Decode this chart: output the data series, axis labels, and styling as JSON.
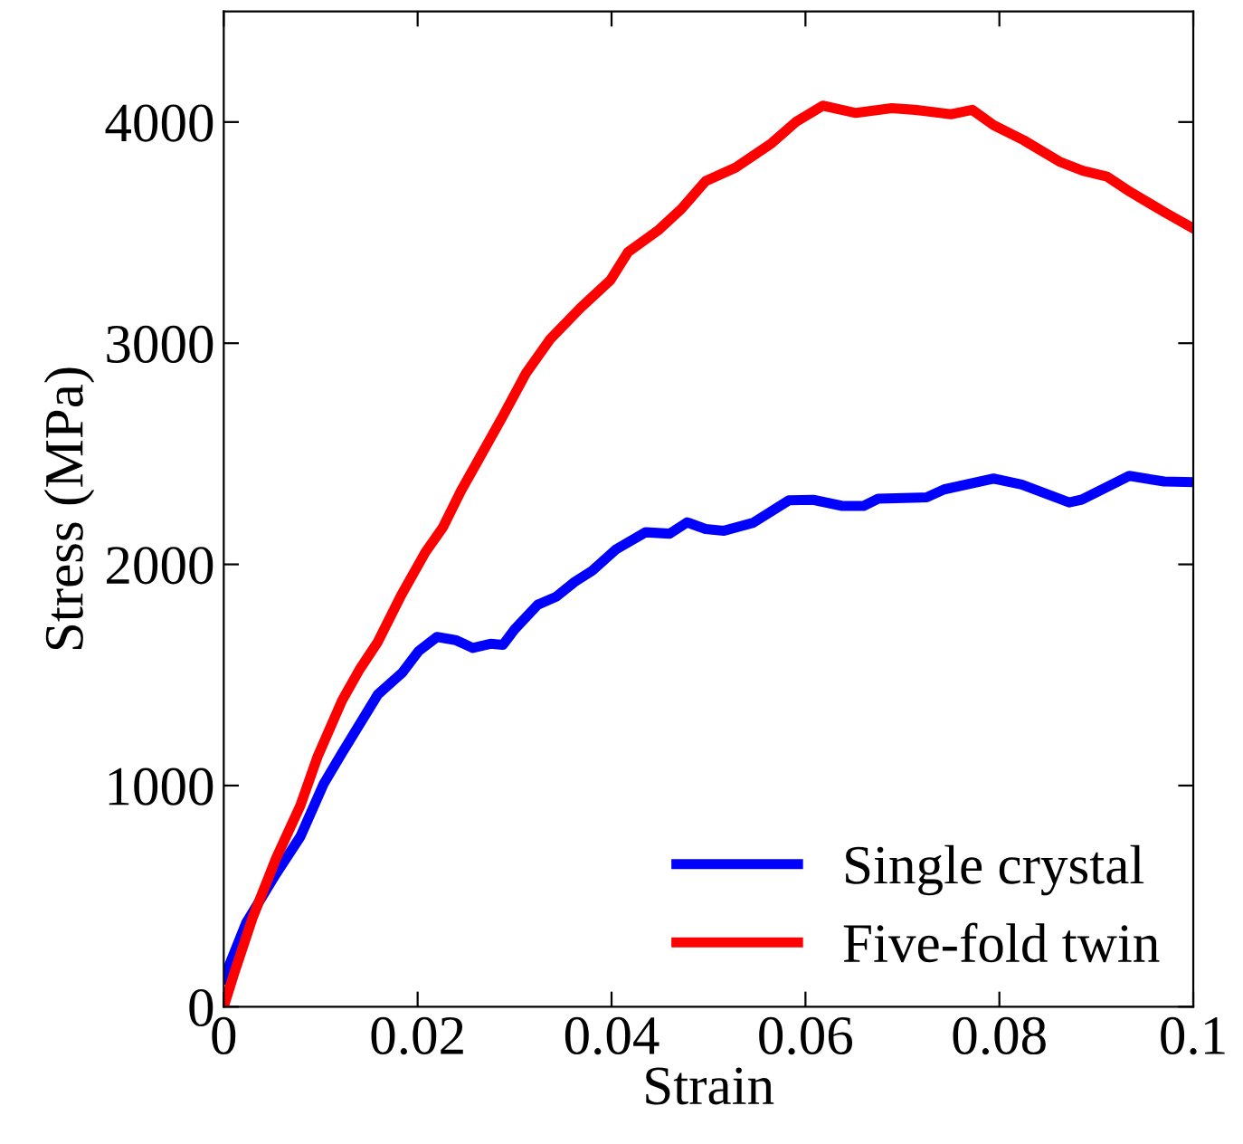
{
  "chart_data": {
    "type": "line",
    "xlabel": "Strain",
    "ylabel": "Stress (MPa)",
    "xlim": [
      0,
      0.1
    ],
    "ylim": [
      0,
      4500
    ],
    "xticks": [
      0,
      0.02,
      0.04,
      0.06,
      0.08,
      0.1
    ],
    "yticks": [
      0,
      1000,
      2000,
      3000,
      4000
    ],
    "grid": false,
    "legend": "bottom right",
    "line_style": "solid",
    "series": [
      {
        "name": "Single crystal",
        "color": "#0000ff",
        "x": [
          0,
          0.0023,
          0.0054,
          0.0079,
          0.0103,
          0.0122,
          0.0159,
          0.0184,
          0.0201,
          0.022,
          0.0239,
          0.0257,
          0.0275,
          0.0288,
          0.03,
          0.0324,
          0.0343,
          0.0362,
          0.038,
          0.0405,
          0.0435,
          0.046,
          0.0478,
          0.0497,
          0.0516,
          0.0546,
          0.0583,
          0.0608,
          0.0638,
          0.066,
          0.0675,
          0.0725,
          0.0743,
          0.0794,
          0.0823,
          0.0872,
          0.0885,
          0.0934,
          0.097,
          0.1
        ],
        "values": [
          126,
          378,
          601,
          769,
          1007,
          1147,
          1412,
          1510,
          1608,
          1672,
          1658,
          1622,
          1641,
          1636,
          1706,
          1818,
          1854,
          1921,
          1971,
          2069,
          2145,
          2139,
          2190,
          2160,
          2152,
          2188,
          2290,
          2292,
          2264,
          2264,
          2297,
          2303,
          2339,
          2388,
          2361,
          2280,
          2293,
          2400,
          2375,
          2372
        ]
      },
      {
        "name": "Five-fold twin",
        "color": "#ff0000",
        "x": [
          0,
          0.0011,
          0.003,
          0.0054,
          0.0079,
          0.0097,
          0.0122,
          0.014,
          0.0159,
          0.0183,
          0.0208,
          0.0226,
          0.0245,
          0.0263,
          0.0288,
          0.0312,
          0.0337,
          0.0368,
          0.0399,
          0.0417,
          0.0448,
          0.0472,
          0.0497,
          0.0528,
          0.0565,
          0.059,
          0.0618,
          0.0652,
          0.0689,
          0.0713,
          0.075,
          0.0772,
          0.0794,
          0.0825,
          0.0862,
          0.0886,
          0.0911,
          0.0935,
          0.0972,
          0.1
        ],
        "values": [
          0,
          154,
          405,
          671,
          909,
          1133,
          1384,
          1524,
          1650,
          1860,
          2055,
          2167,
          2335,
          2475,
          2671,
          2866,
          3020,
          3160,
          3286,
          3412,
          3510,
          3607,
          3733,
          3794,
          3904,
          4000,
          4074,
          4041,
          4063,
          4055,
          4035,
          4055,
          3986,
          3918,
          3821,
          3780,
          3753,
          3684,
          3588,
          3519
        ]
      }
    ]
  }
}
